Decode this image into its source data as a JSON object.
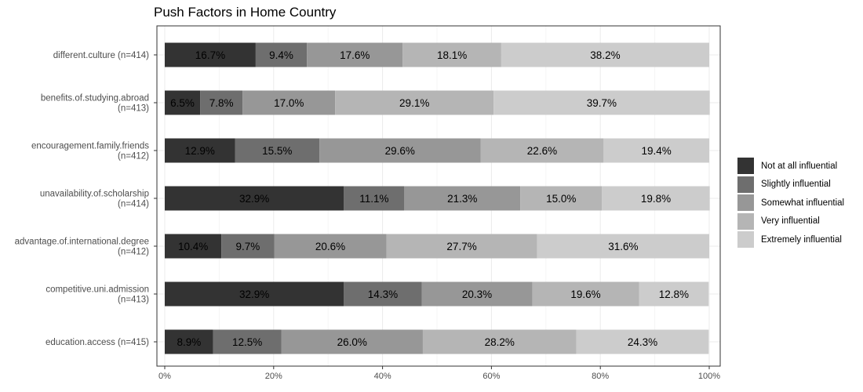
{
  "chart_data": {
    "type": "bar",
    "orientation": "horizontal",
    "stacked": true,
    "title": "Push Factors in Home Country",
    "xlabel": "",
    "ylabel": "",
    "xlim": [
      0,
      100
    ],
    "x_ticks": [
      "0%",
      "20%",
      "40%",
      "60%",
      "80%",
      "100%"
    ],
    "grid": true,
    "legend_position": "right",
    "categories": [
      [
        "different.culture (n=414)"
      ],
      [
        "benefits.of.studying.abroad",
        "(n=413)"
      ],
      [
        "encouragement.family.friends",
        "(n=412)"
      ],
      [
        "unavailability.of.scholarship",
        "(n=414)"
      ],
      [
        "advantage.of.international.degree",
        "(n=412)"
      ],
      [
        "competitive.uni.admission",
        "(n=413)"
      ],
      [
        "education.access (n=415)"
      ]
    ],
    "series": [
      {
        "name": "Not at all influential",
        "color": "#333333",
        "label_color": "#000000",
        "values": [
          16.7,
          6.5,
          12.9,
          32.9,
          10.4,
          32.9,
          8.9
        ],
        "labels": [
          "16.7%",
          "6.5%",
          "12.9%",
          "32.9%",
          "10.4%",
          "32.9%",
          "8.9%"
        ]
      },
      {
        "name": "Slightly influential",
        "color": "#6e6e6e",
        "label_color": "#000000",
        "values": [
          9.4,
          7.8,
          15.5,
          11.1,
          9.7,
          14.3,
          12.5
        ],
        "labels": [
          "9.4%",
          "7.8%",
          "15.5%",
          "11.1%",
          "9.7%",
          "14.3%",
          "12.5%"
        ]
      },
      {
        "name": "Somewhat influential",
        "color": "#979797",
        "label_color": "#000000",
        "values": [
          17.6,
          17.0,
          29.6,
          21.3,
          20.6,
          20.3,
          26.0
        ],
        "labels": [
          "17.6%",
          "17.0%",
          "29.6%",
          "21.3%",
          "20.6%",
          "20.3%",
          "26.0%"
        ]
      },
      {
        "name": "Very influential",
        "color": "#b5b5b5",
        "label_color": "#000000",
        "values": [
          18.1,
          29.1,
          22.6,
          15.0,
          27.7,
          19.6,
          28.2
        ],
        "labels": [
          "18.1%",
          "29.1%",
          "22.6%",
          "15.0%",
          "27.7%",
          "19.6%",
          "28.2%"
        ]
      },
      {
        "name": "Extremely influential",
        "color": "#cccccc",
        "label_color": "#000000",
        "values": [
          38.2,
          39.7,
          19.4,
          19.8,
          31.6,
          12.8,
          24.3
        ],
        "labels": [
          "38.2%",
          "39.7%",
          "19.4%",
          "19.8%",
          "31.6%",
          "12.8%",
          "24.3%"
        ]
      }
    ]
  }
}
